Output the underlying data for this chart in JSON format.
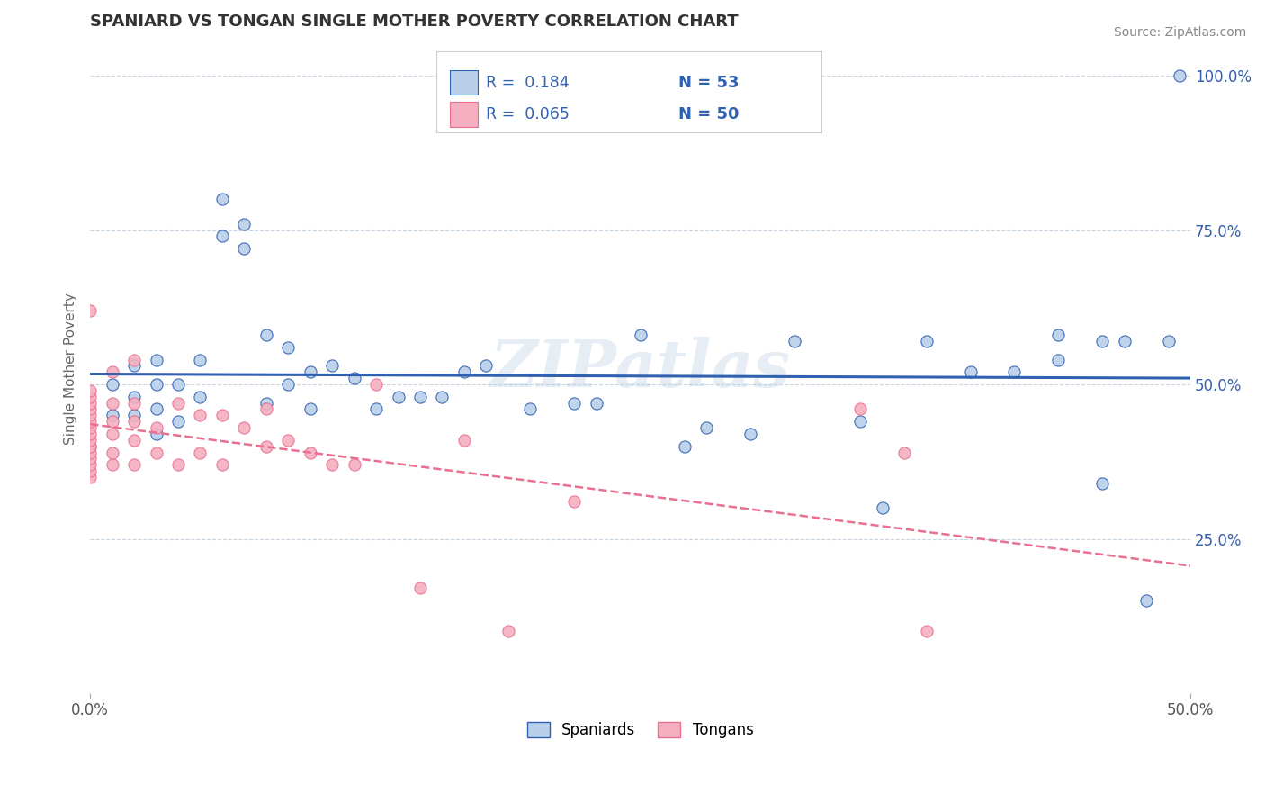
{
  "title": "SPANIARD VS TONGAN SINGLE MOTHER POVERTY CORRELATION CHART",
  "source": "Source: ZipAtlas.com",
  "ylabel": "Single Mother Poverty",
  "xlim": [
    0.0,
    0.5
  ],
  "ylim": [
    0.0,
    1.05
  ],
  "spaniard_color": "#b8d0e8",
  "tongan_color": "#f4b0c0",
  "spaniard_line_color": "#3060b0",
  "tongan_line_color": "#e87090",
  "watermark": "ZIPatlas",
  "legend_R_spaniard": "R =  0.184",
  "legend_N_spaniard": "N = 53",
  "legend_R_tongan": "R =  0.065",
  "legend_N_tongan": "N = 50",
  "background_color": "#ffffff",
  "grid_color": "#c8d4e0",
  "spaniard_x": [
    0.0,
    0.01,
    0.01,
    0.02,
    0.02,
    0.02,
    0.03,
    0.03,
    0.03,
    0.03,
    0.04,
    0.04,
    0.05,
    0.05,
    0.06,
    0.06,
    0.07,
    0.07,
    0.08,
    0.08,
    0.09,
    0.09,
    0.1,
    0.1,
    0.11,
    0.12,
    0.13,
    0.14,
    0.15,
    0.16,
    0.17,
    0.18,
    0.2,
    0.22,
    0.23,
    0.25,
    0.27,
    0.28,
    0.3,
    0.32,
    0.35,
    0.36,
    0.38,
    0.4,
    0.42,
    0.44,
    0.44,
    0.46,
    0.46,
    0.47,
    0.48,
    0.49,
    0.495
  ],
  "spaniard_y": [
    0.4,
    0.45,
    0.5,
    0.45,
    0.48,
    0.53,
    0.42,
    0.46,
    0.5,
    0.54,
    0.44,
    0.5,
    0.48,
    0.54,
    0.74,
    0.8,
    0.72,
    0.76,
    0.47,
    0.58,
    0.5,
    0.56,
    0.46,
    0.52,
    0.53,
    0.51,
    0.46,
    0.48,
    0.48,
    0.48,
    0.52,
    0.53,
    0.46,
    0.47,
    0.47,
    0.58,
    0.4,
    0.43,
    0.42,
    0.57,
    0.44,
    0.3,
    0.57,
    0.52,
    0.52,
    0.54,
    0.58,
    0.34,
    0.57,
    0.57,
    0.15,
    0.57,
    1.0
  ],
  "tongan_x": [
    0.0,
    0.0,
    0.0,
    0.0,
    0.0,
    0.0,
    0.0,
    0.0,
    0.0,
    0.0,
    0.0,
    0.0,
    0.0,
    0.0,
    0.0,
    0.0,
    0.01,
    0.01,
    0.01,
    0.01,
    0.01,
    0.01,
    0.02,
    0.02,
    0.02,
    0.02,
    0.02,
    0.03,
    0.03,
    0.04,
    0.04,
    0.05,
    0.05,
    0.06,
    0.06,
    0.07,
    0.08,
    0.08,
    0.09,
    0.1,
    0.11,
    0.12,
    0.13,
    0.15,
    0.17,
    0.19,
    0.22,
    0.35,
    0.37,
    0.38
  ],
  "tongan_y": [
    0.35,
    0.36,
    0.37,
    0.38,
    0.39,
    0.4,
    0.41,
    0.42,
    0.43,
    0.44,
    0.45,
    0.46,
    0.47,
    0.48,
    0.49,
    0.62,
    0.37,
    0.39,
    0.42,
    0.44,
    0.47,
    0.52,
    0.37,
    0.41,
    0.44,
    0.47,
    0.54,
    0.39,
    0.43,
    0.37,
    0.47,
    0.39,
    0.45,
    0.37,
    0.45,
    0.43,
    0.4,
    0.46,
    0.41,
    0.39,
    0.37,
    0.37,
    0.5,
    0.17,
    0.41,
    0.1,
    0.31,
    0.46,
    0.39,
    0.1
  ]
}
